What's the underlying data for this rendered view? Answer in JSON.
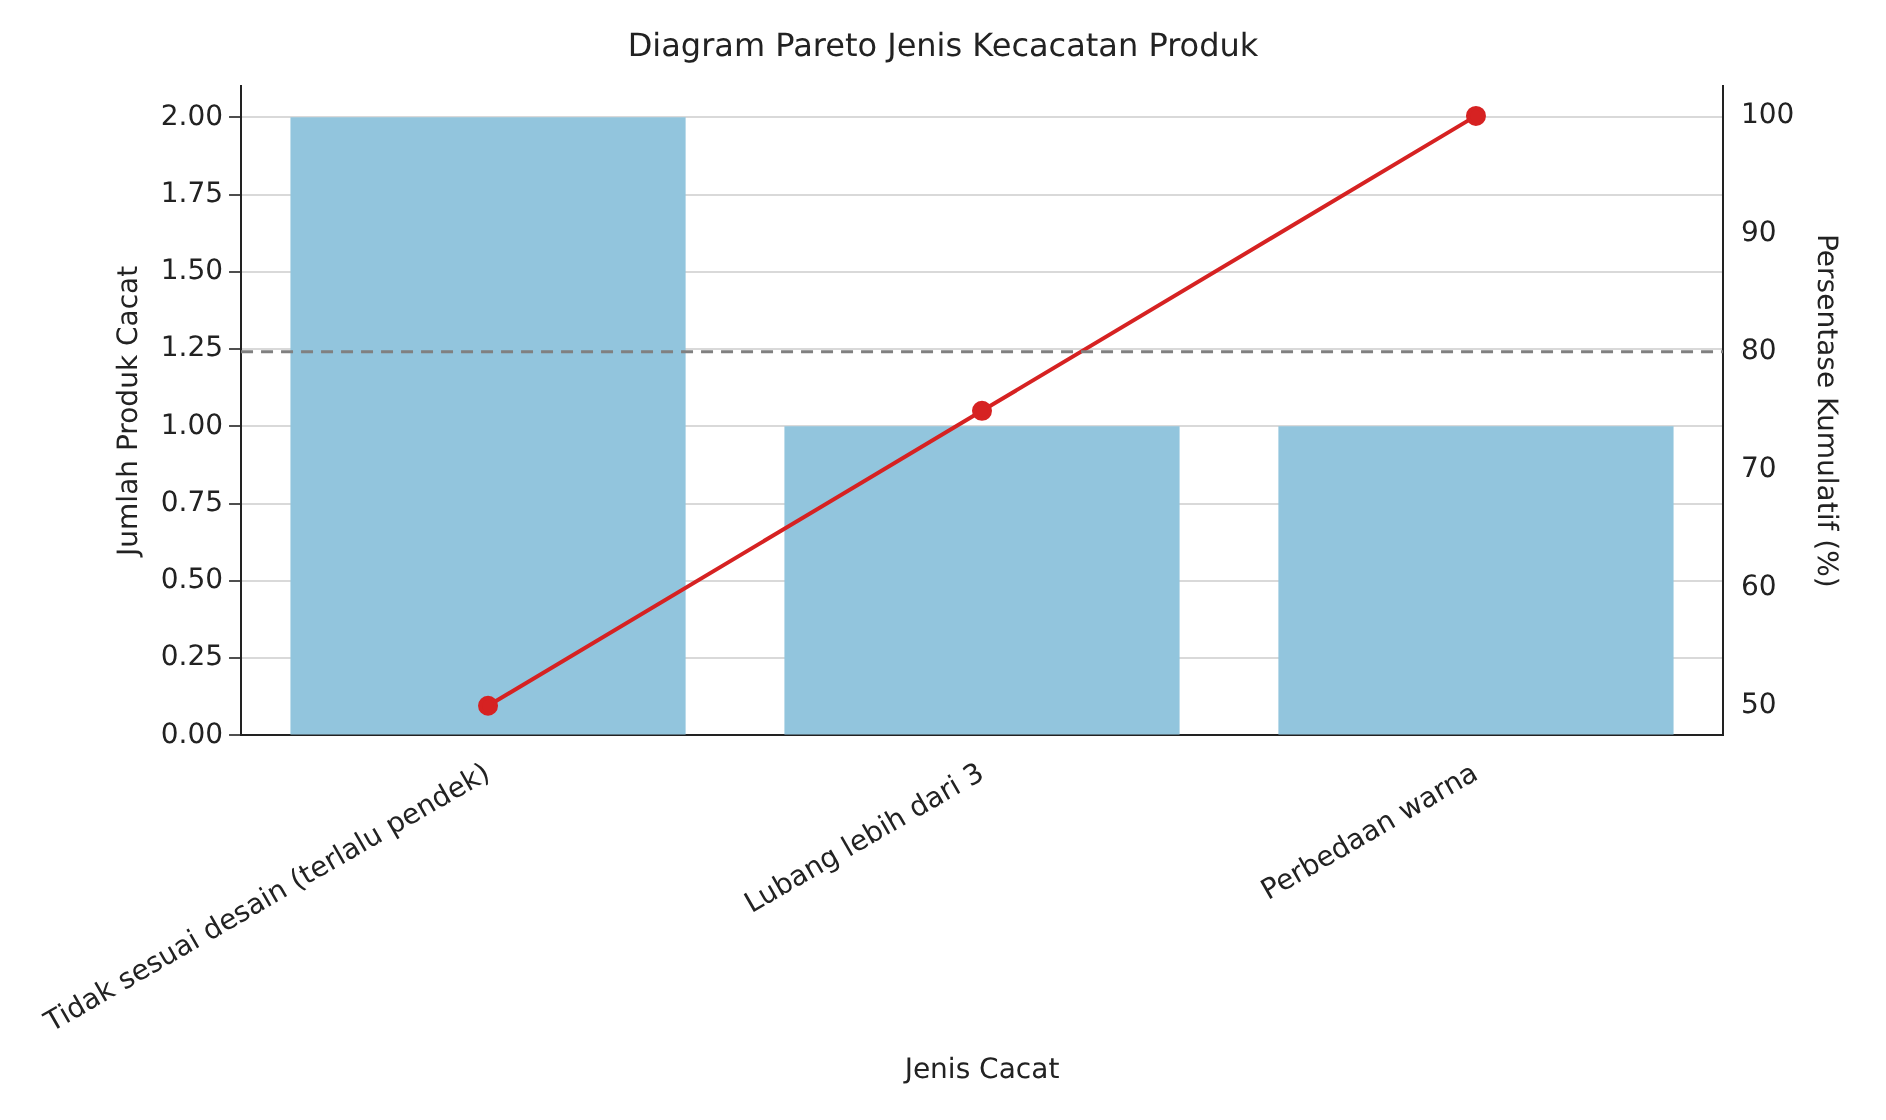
{
  "chart_data": {
    "type": "bar",
    "title": "Diagram Pareto Jenis Kecacatan Produk",
    "xlabel": "Jenis Cacat",
    "ylabel": "Jumlah Produk Cacat",
    "y2label": "Persentase Kumulatif (%)",
    "categories": [
      "Tidak sesuai desain (terlalu pendek)",
      "Lubang lebih dari 3",
      "Perbedaan warna"
    ],
    "series": [
      {
        "color": "#92c5dd",
        "values": [
          2,
          1,
          1
        ]
      },
      {
        "type": "line",
        "axis": "y2",
        "color": "#d62222",
        "marker": "circle",
        "values": [
          50,
          75,
          100
        ]
      }
    ],
    "ylim": [
      0,
      2.1
    ],
    "yticks": [
      {
        "value": 0,
        "label": "0.00"
      },
      {
        "value": 0.25,
        "label": "0.25"
      },
      {
        "value": 0.5,
        "label": "0.50"
      },
      {
        "value": 0.75,
        "label": "0.75"
      },
      {
        "value": 1,
        "label": "1.00"
      },
      {
        "value": 1.25,
        "label": "1.25"
      },
      {
        "value": 1.5,
        "label": "1.50"
      },
      {
        "value": 1.75,
        "label": "1.75"
      },
      {
        "value": 2,
        "label": "2.00"
      }
    ],
    "y2lim": [
      47.5,
      102.5
    ],
    "y2ticks": [
      50,
      60,
      70,
      80,
      90,
      100
    ],
    "ref_lines": [
      {
        "axis": "y2",
        "value": 80,
        "color": "#808080",
        "line_style": "dashed"
      }
    ],
    "grid": "y",
    "legend": false
  }
}
